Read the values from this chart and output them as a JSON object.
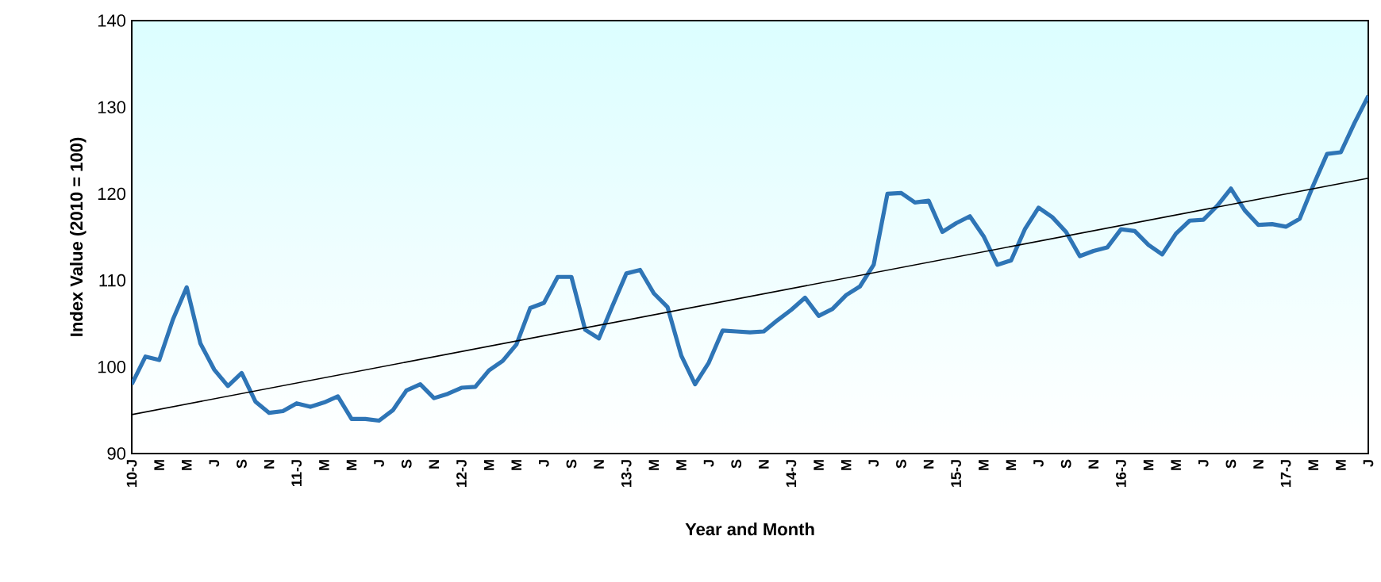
{
  "chart_data": {
    "type": "line",
    "xlabel": "Year and Month",
    "ylabel": "Index Value (2010 = 100)",
    "categories": [
      "10-J",
      null,
      "M",
      null,
      "M",
      null,
      "J",
      null,
      "S",
      null,
      "N",
      null,
      "11-J",
      null,
      "M",
      null,
      "M",
      null,
      "J",
      null,
      "S",
      null,
      "N",
      null,
      "12-J",
      null,
      "M",
      null,
      "M",
      null,
      "J",
      null,
      "S",
      null,
      "N",
      null,
      "13-J",
      null,
      "M",
      null,
      "M",
      null,
      "J",
      null,
      "S",
      null,
      "N",
      null,
      "14-J",
      null,
      "M",
      null,
      "M",
      null,
      "J",
      null,
      "S",
      null,
      "N",
      null,
      "15-J",
      null,
      "M",
      null,
      "M",
      null,
      "J",
      null,
      "S",
      null,
      "N",
      null,
      "16-J",
      null,
      "M",
      null,
      "M",
      null,
      "J",
      null,
      "S",
      null,
      "N",
      null,
      "17-J",
      null,
      "M",
      null,
      "M",
      null,
      "J"
    ],
    "series": [
      {
        "color": "#2e75b6",
        "values": [
          98,
          101.2,
          100.8,
          105.5,
          109.2,
          102.7,
          99.7,
          97.8,
          99.3,
          96,
          94.7,
          94.9,
          95.8,
          95.4,
          95.9,
          96.6,
          94,
          94,
          93.8,
          95,
          97.3,
          98,
          96.4,
          96.9,
          97.6,
          97.7,
          99.6,
          100.7,
          102.6,
          106.8,
          107.4,
          110.4,
          110.4,
          104.3,
          103.3,
          107.1,
          110.8,
          111.2,
          108.5,
          106.9,
          101.3,
          98,
          100.5,
          104.2,
          104.1,
          104,
          104.1,
          105.4,
          106.6,
          108,
          105.9,
          106.7,
          108.3,
          109.3,
          111.8,
          120,
          120.1,
          119,
          119.2,
          115.6,
          116.6,
          117.4,
          115.1,
          111.8,
          112.3,
          115.9,
          118.4,
          117.3,
          115.6,
          112.8,
          113.4,
          113.8,
          115.9,
          115.7,
          114.1,
          113,
          115.4,
          116.9,
          117,
          118.6,
          120.6,
          118.1,
          116.4,
          116.5,
          116.2,
          117.1,
          121,
          124.6,
          124.8,
          128.2,
          131.3
        ]
      },
      {
        "color": "#000000",
        "values": [
          94.5,
          null,
          null,
          null,
          null,
          null,
          null,
          null,
          null,
          null,
          null,
          null,
          null,
          null,
          null,
          null,
          null,
          null,
          null,
          null,
          null,
          null,
          null,
          null,
          null,
          null,
          null,
          null,
          null,
          null,
          null,
          null,
          null,
          null,
          null,
          null,
          null,
          null,
          null,
          null,
          null,
          null,
          null,
          null,
          null,
          null,
          null,
          null,
          null,
          null,
          null,
          null,
          null,
          null,
          null,
          null,
          null,
          null,
          null,
          null,
          null,
          null,
          null,
          null,
          null,
          null,
          null,
          null,
          null,
          null,
          null,
          null,
          null,
          null,
          null,
          null,
          null,
          null,
          null,
          null,
          null,
          null,
          null,
          null,
          null,
          null,
          null,
          null,
          null,
          null,
          121.8
        ]
      }
    ],
    "ylim": [
      90,
      140
    ],
    "yticks": [
      90,
      100,
      110,
      120,
      130,
      140
    ],
    "grid": false
  }
}
